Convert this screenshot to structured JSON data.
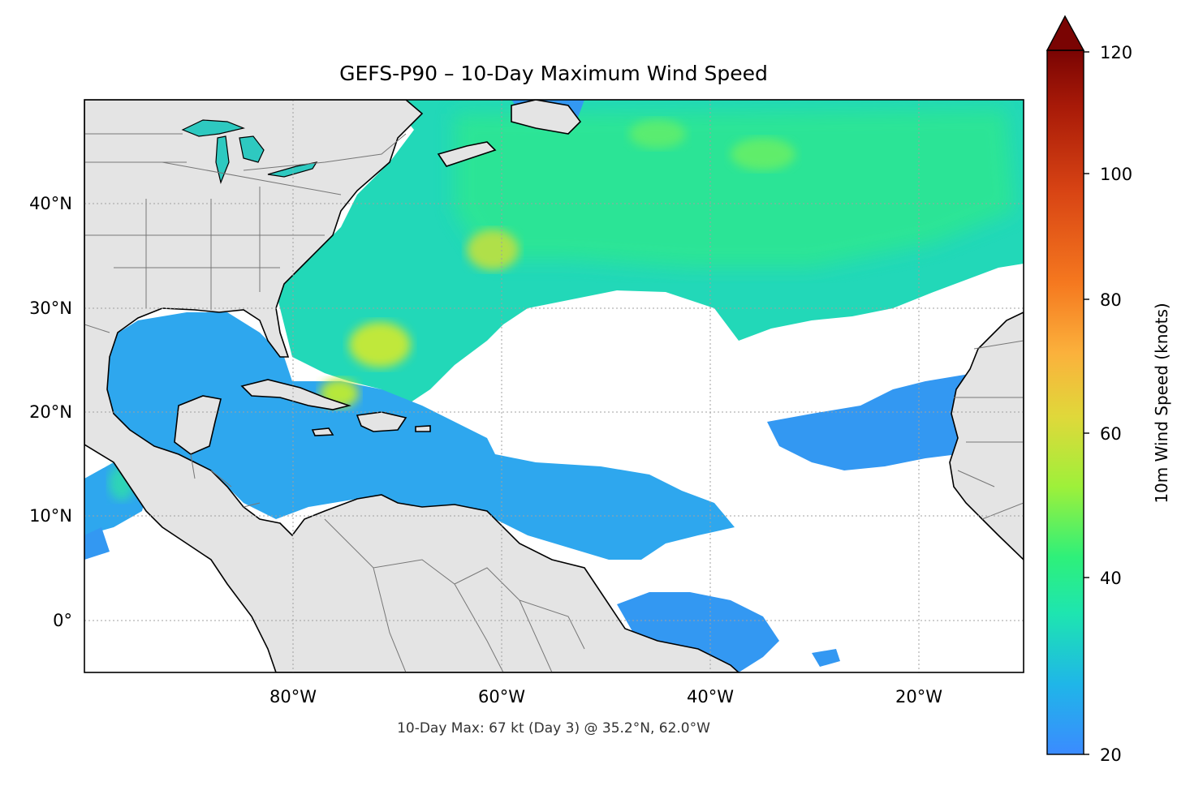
{
  "title": "GEFS-P90 – 10-Day Maximum Wind Speed",
  "caption": "10-Day Max: 67 kt (Day 3) @ 35.2°N, 62.0°W",
  "map": {
    "lon_range": [
      -100,
      -10
    ],
    "lat_range": [
      -5,
      50
    ],
    "lon_ticks": [
      {
        "value": -80,
        "label": "80°W"
      },
      {
        "value": -60,
        "label": "60°W"
      },
      {
        "value": -40,
        "label": "40°W"
      },
      {
        "value": -20,
        "label": "20°W"
      }
    ],
    "lat_ticks": [
      {
        "value": 40,
        "label": "40°N"
      },
      {
        "value": 30,
        "label": "30°N"
      },
      {
        "value": 20,
        "label": "20°N"
      },
      {
        "value": 10,
        "label": "10°N"
      },
      {
        "value": 0,
        "label": "0°"
      }
    ],
    "gridlines": "dotted",
    "land_color": "#e4e4e4",
    "ocean_color": "#ffffff",
    "max_point": {
      "lat": 35.2,
      "lon": -62.0,
      "value": 67,
      "day": 3
    }
  },
  "colorbar": {
    "label": "10m Wind Speed (knots)",
    "min": 20,
    "max": 120,
    "extend": "max",
    "ticks": [
      {
        "value": 20,
        "label": "20"
      },
      {
        "value": 40,
        "label": "40"
      },
      {
        "value": 60,
        "label": "60"
      },
      {
        "value": 80,
        "label": "80"
      },
      {
        "value": 100,
        "label": "100"
      },
      {
        "value": 120,
        "label": "120"
      }
    ],
    "colormap": [
      "#3b8bff",
      "#1fb6e8",
      "#1ee5b0",
      "#2ef07a",
      "#9ef03a",
      "#e0d83a",
      "#fbb13c",
      "#f5781f",
      "#d84414",
      "#a81a08",
      "#7a0403"
    ]
  }
}
